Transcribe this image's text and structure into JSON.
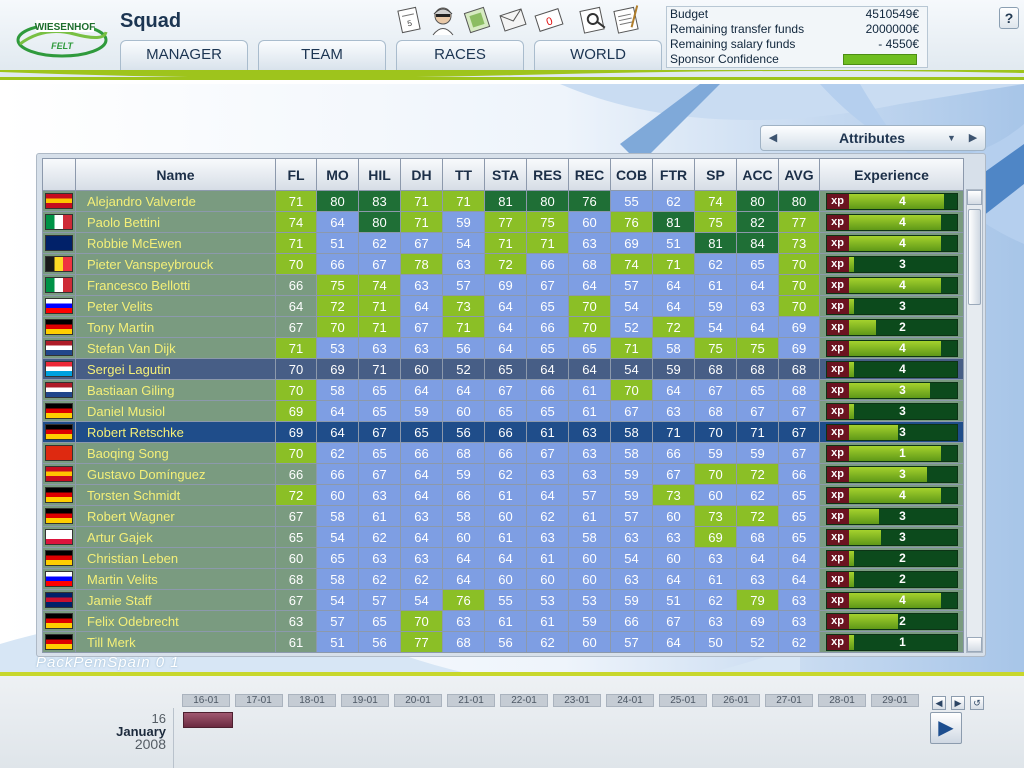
{
  "header": {
    "title": "Squad",
    "logo_text": "WIESENHOF FELT",
    "nav": [
      {
        "label": "MANAGER"
      },
      {
        "label": "TEAM"
      },
      {
        "label": "RACES"
      },
      {
        "label": "WORLD"
      }
    ],
    "toolbar_icons": [
      "calendar-icon",
      "rider-icon",
      "contracts-icon",
      "mail-icon",
      "messages-icon",
      "search-icon",
      "notes-icon"
    ],
    "mail_count": "0",
    "help_label": "?"
  },
  "finance": {
    "budget_label": "Budget",
    "budget_value": "4510549€",
    "transfer_label": "Remaining transfer funds",
    "transfer_value": "2000000€",
    "salary_label": "Remaining salary funds",
    "salary_value": "- 4550€",
    "confidence_label": "Sponsor Confidence",
    "confidence_level": 1.0
  },
  "attributes_selector": {
    "label": "Attributes"
  },
  "pack_label": "PackPemSpain 0 1",
  "table": {
    "columns": [
      "Name",
      "FL",
      "MO",
      "HIL",
      "DH",
      "TT",
      "STA",
      "RES",
      "REC",
      "COB",
      "FTR",
      "SP",
      "ACC",
      "AVG",
      "Experience"
    ],
    "xp_label": "xp",
    "rows": [
      {
        "flag": "ES",
        "name": "Alejandro Valverde",
        "stats": [
          71,
          80,
          83,
          71,
          71,
          81,
          80,
          76,
          55,
          62,
          74,
          80,
          80
        ],
        "tiers": [
          2,
          3,
          3,
          2,
          2,
          3,
          3,
          3,
          1,
          1,
          2,
          3,
          3
        ],
        "exp": 4,
        "exp_fill": 0.88
      },
      {
        "flag": "IT",
        "name": "Paolo Bettini",
        "stats": [
          74,
          64,
          80,
          71,
          59,
          77,
          75,
          60,
          76,
          81,
          75,
          82,
          77
        ],
        "tiers": [
          2,
          1,
          3,
          2,
          1,
          2,
          2,
          1,
          2,
          3,
          2,
          3,
          2
        ],
        "exp": 4,
        "exp_fill": 0.85
      },
      {
        "flag": "AU",
        "name": "Robbie McEwen",
        "stats": [
          71,
          51,
          62,
          67,
          54,
          71,
          71,
          63,
          69,
          51,
          81,
          84,
          73
        ],
        "tiers": [
          2,
          1,
          1,
          1,
          1,
          2,
          2,
          1,
          1,
          1,
          3,
          3,
          2
        ],
        "exp": 4,
        "exp_fill": 0.85
      },
      {
        "flag": "BE",
        "name": "Pieter Vanspeybrouck",
        "stats": [
          70,
          66,
          67,
          78,
          63,
          72,
          66,
          68,
          74,
          71,
          62,
          65,
          70
        ],
        "tiers": [
          2,
          1,
          1,
          2,
          1,
          2,
          1,
          1,
          2,
          2,
          1,
          1,
          2
        ],
        "exp": 3,
        "exp_fill": 0.05
      },
      {
        "flag": "IT",
        "name": "Francesco Bellotti",
        "stats": [
          66,
          75,
          74,
          63,
          57,
          69,
          67,
          64,
          57,
          64,
          61,
          64,
          70
        ],
        "tiers": [
          1,
          2,
          2,
          1,
          1,
          1,
          1,
          1,
          1,
          1,
          1,
          1,
          2
        ],
        "exp": 4,
        "exp_fill": 0.85
      },
      {
        "flag": "SI",
        "name": "Peter Velits",
        "stats": [
          64,
          72,
          71,
          64,
          73,
          64,
          65,
          70,
          54,
          64,
          59,
          63,
          70
        ],
        "tiers": [
          1,
          2,
          2,
          1,
          2,
          1,
          1,
          2,
          1,
          1,
          1,
          1,
          2
        ],
        "exp": 3,
        "exp_fill": 0.05
      },
      {
        "flag": "DE",
        "name": "Tony Martin",
        "stats": [
          67,
          70,
          71,
          67,
          71,
          64,
          66,
          70,
          52,
          72,
          54,
          64,
          69
        ],
        "tiers": [
          1,
          2,
          2,
          1,
          2,
          1,
          1,
          2,
          1,
          2,
          1,
          1,
          1
        ],
        "exp": 2,
        "exp_fill": 0.25
      },
      {
        "flag": "NL",
        "name": "Stefan Van Dijk",
        "stats": [
          71,
          53,
          63,
          63,
          56,
          64,
          65,
          65,
          71,
          58,
          75,
          75,
          69
        ],
        "tiers": [
          2,
          1,
          1,
          1,
          1,
          1,
          1,
          1,
          2,
          1,
          2,
          2,
          1
        ],
        "exp": 4,
        "exp_fill": 0.85
      },
      {
        "flag": "LU",
        "name": "Sergei Lagutin",
        "stats": [
          70,
          69,
          71,
          60,
          52,
          65,
          64,
          64,
          54,
          59,
          68,
          68,
          68
        ],
        "tiers": [
          2,
          1,
          2,
          1,
          1,
          1,
          1,
          1,
          1,
          1,
          1,
          1,
          1
        ],
        "exp": 4,
        "exp_fill": 0.05,
        "state": "hover"
      },
      {
        "flag": "NL",
        "name": "Bastiaan Giling",
        "stats": [
          70,
          58,
          65,
          64,
          64,
          67,
          66,
          61,
          70,
          64,
          67,
          65,
          68
        ],
        "tiers": [
          2,
          1,
          1,
          1,
          1,
          1,
          1,
          1,
          2,
          1,
          1,
          1,
          1
        ],
        "exp": 3,
        "exp_fill": 0.75
      },
      {
        "flag": "DE",
        "name": "Daniel Musiol",
        "stats": [
          69,
          64,
          65,
          59,
          60,
          65,
          65,
          61,
          67,
          63,
          68,
          67,
          67
        ],
        "tiers": [
          2,
          1,
          1,
          1,
          1,
          1,
          1,
          1,
          1,
          1,
          1,
          1,
          1
        ],
        "exp": 3,
        "exp_fill": 0.05
      },
      {
        "flag": "DE",
        "name": "Robert Retschke",
        "stats": [
          69,
          64,
          67,
          65,
          56,
          66,
          61,
          63,
          58,
          71,
          70,
          71,
          67
        ],
        "tiers": [
          2,
          1,
          1,
          1,
          1,
          1,
          1,
          1,
          1,
          2,
          2,
          2,
          1
        ],
        "exp": 3,
        "exp_fill": 0.45,
        "state": "selected"
      },
      {
        "flag": "CN",
        "name": "Baoqing Song",
        "stats": [
          70,
          62,
          65,
          66,
          68,
          66,
          67,
          63,
          58,
          66,
          59,
          59,
          67
        ],
        "tiers": [
          2,
          1,
          1,
          1,
          1,
          1,
          1,
          1,
          1,
          1,
          1,
          1,
          1
        ],
        "exp": 1,
        "exp_fill": 0.85
      },
      {
        "flag": "ES",
        "name": "Gustavo Domínguez",
        "stats": [
          66,
          66,
          67,
          64,
          59,
          62,
          63,
          63,
          59,
          67,
          70,
          72,
          66
        ],
        "tiers": [
          1,
          1,
          1,
          1,
          1,
          1,
          1,
          1,
          1,
          1,
          2,
          2,
          1
        ],
        "exp": 3,
        "exp_fill": 0.72
      },
      {
        "flag": "DE",
        "name": "Torsten Schmidt",
        "stats": [
          72,
          60,
          63,
          64,
          66,
          61,
          64,
          57,
          59,
          73,
          60,
          62,
          65
        ],
        "tiers": [
          2,
          1,
          1,
          1,
          1,
          1,
          1,
          1,
          1,
          2,
          1,
          1,
          1
        ],
        "exp": 4,
        "exp_fill": 0.85
      },
      {
        "flag": "DE",
        "name": "Robert Wagner",
        "stats": [
          67,
          58,
          61,
          63,
          58,
          60,
          62,
          61,
          57,
          60,
          73,
          72,
          65
        ],
        "tiers": [
          1,
          1,
          1,
          1,
          1,
          1,
          1,
          1,
          1,
          1,
          2,
          2,
          1
        ],
        "exp": 3,
        "exp_fill": 0.28
      },
      {
        "flag": "PL",
        "name": "Artur Gajek",
        "stats": [
          65,
          54,
          62,
          64,
          60,
          61,
          63,
          58,
          63,
          63,
          69,
          68,
          65
        ],
        "tiers": [
          1,
          1,
          1,
          1,
          1,
          1,
          1,
          1,
          1,
          1,
          2,
          1,
          1
        ],
        "exp": 3,
        "exp_fill": 0.3
      },
      {
        "flag": "DE",
        "name": "Christian Leben",
        "stats": [
          60,
          65,
          63,
          63,
          64,
          64,
          61,
          60,
          54,
          60,
          63,
          64,
          64
        ],
        "tiers": [
          1,
          1,
          1,
          1,
          1,
          1,
          1,
          1,
          1,
          1,
          1,
          1,
          1
        ],
        "exp": 2,
        "exp_fill": 0.05
      },
      {
        "flag": "SI",
        "name": "Martin Velits",
        "stats": [
          68,
          58,
          62,
          62,
          64,
          60,
          60,
          60,
          63,
          64,
          61,
          63,
          64
        ],
        "tiers": [
          1,
          1,
          1,
          1,
          1,
          1,
          1,
          1,
          1,
          1,
          1,
          1,
          1
        ],
        "exp": 2,
        "exp_fill": 0.05
      },
      {
        "flag": "GB",
        "name": "Jamie Staff",
        "stats": [
          67,
          54,
          57,
          54,
          76,
          55,
          53,
          53,
          59,
          51,
          62,
          79,
          63
        ],
        "tiers": [
          1,
          1,
          1,
          1,
          2,
          1,
          1,
          1,
          1,
          1,
          1,
          2,
          1
        ],
        "exp": 4,
        "exp_fill": 0.85
      },
      {
        "flag": "DE",
        "name": "Felix Odebrecht",
        "stats": [
          63,
          57,
          65,
          70,
          63,
          61,
          61,
          59,
          66,
          67,
          63,
          69,
          63
        ],
        "tiers": [
          1,
          1,
          1,
          2,
          1,
          1,
          1,
          1,
          1,
          1,
          1,
          1,
          1
        ],
        "exp": 2,
        "exp_fill": 0.45
      },
      {
        "flag": "DE",
        "name": "Till Merk",
        "stats": [
          61,
          51,
          56,
          77,
          68,
          56,
          62,
          60,
          57,
          64,
          50,
          52,
          62
        ],
        "tiers": [
          1,
          1,
          1,
          2,
          1,
          1,
          1,
          1,
          1,
          1,
          1,
          1,
          1
        ],
        "exp": 1,
        "exp_fill": 0.05
      }
    ]
  },
  "calendar": {
    "dates": [
      "16-01",
      "17-01",
      "18-01",
      "19-01",
      "20-01",
      "21-01",
      "22-01",
      "23-01",
      "24-01",
      "25-01",
      "26-01",
      "27-01",
      "28-01",
      "29-01"
    ],
    "day": "16",
    "month": "January",
    "year": "2008"
  },
  "colors": {
    "tier1": "#7e9ee3",
    "tier2": "#8bbf26",
    "tier3": "#1f6f36",
    "name_text": "#f4ef78",
    "selected_row": "#1f4d8a",
    "accent_green": "#9ec41c"
  },
  "flags": {
    "ES": [
      "#c60b1e",
      "#ffc400",
      "#c60b1e",
      "h"
    ],
    "IT": [
      "#009246",
      "#ffffff",
      "#ce2b37",
      "v"
    ],
    "AU": [
      "#012169",
      "#012169",
      "#012169",
      "h"
    ],
    "BE": [
      "#1a1a1a",
      "#fdda24",
      "#ef3340",
      "v"
    ],
    "SI": [
      "#ffffff",
      "#0000ff",
      "#ff0000",
      "h"
    ],
    "DE": [
      "#000000",
      "#dd0000",
      "#ffce00",
      "h"
    ],
    "NL": [
      "#ae1c28",
      "#ffffff",
      "#21468b",
      "h"
    ],
    "LU": [
      "#ed2939",
      "#ffffff",
      "#00a1de",
      "h"
    ],
    "CN": [
      "#de2910",
      "#de2910",
      "#de2910",
      "h"
    ],
    "PL": [
      "#ffffff",
      "#ffffff",
      "#dc143c",
      "h"
    ],
    "GB": [
      "#012169",
      "#c8102e",
      "#012169",
      "h"
    ]
  }
}
